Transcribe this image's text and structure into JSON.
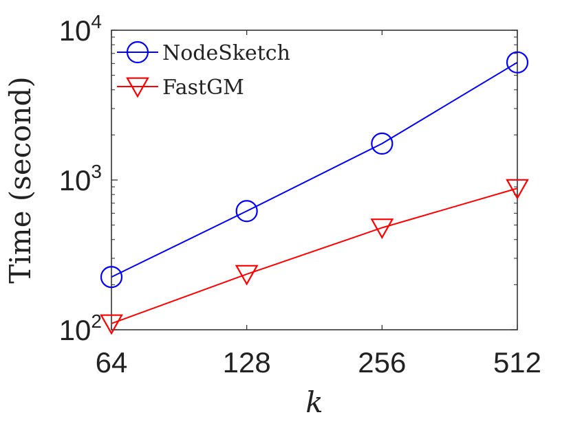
{
  "chart_data": {
    "type": "line",
    "x_scale": "log2",
    "y_scale": "log10",
    "categories": [
      64,
      128,
      256,
      512
    ],
    "x_tick_labels": [
      "64",
      "128",
      "256",
      "512"
    ],
    "y_ticks": [
      {
        "value": 100,
        "base": "10",
        "exp": "2"
      },
      {
        "value": 1000,
        "base": "10",
        "exp": "3"
      },
      {
        "value": 10000,
        "base": "10",
        "exp": "4"
      }
    ],
    "xlabel": "k",
    "ylabel": "Time (second)",
    "xlim": [
      64,
      512
    ],
    "ylim": [
      100,
      10000
    ],
    "grid": false,
    "legend_position": "top-left",
    "series": [
      {
        "name": "NodeSketch",
        "color": "#0000ff",
        "marker": "circle",
        "values": [
          225,
          620,
          1750,
          6100
        ]
      },
      {
        "name": "FastGM",
        "color": "#ff0000",
        "marker": "triangle-down",
        "values": [
          110,
          235,
          480,
          880
        ]
      }
    ]
  }
}
